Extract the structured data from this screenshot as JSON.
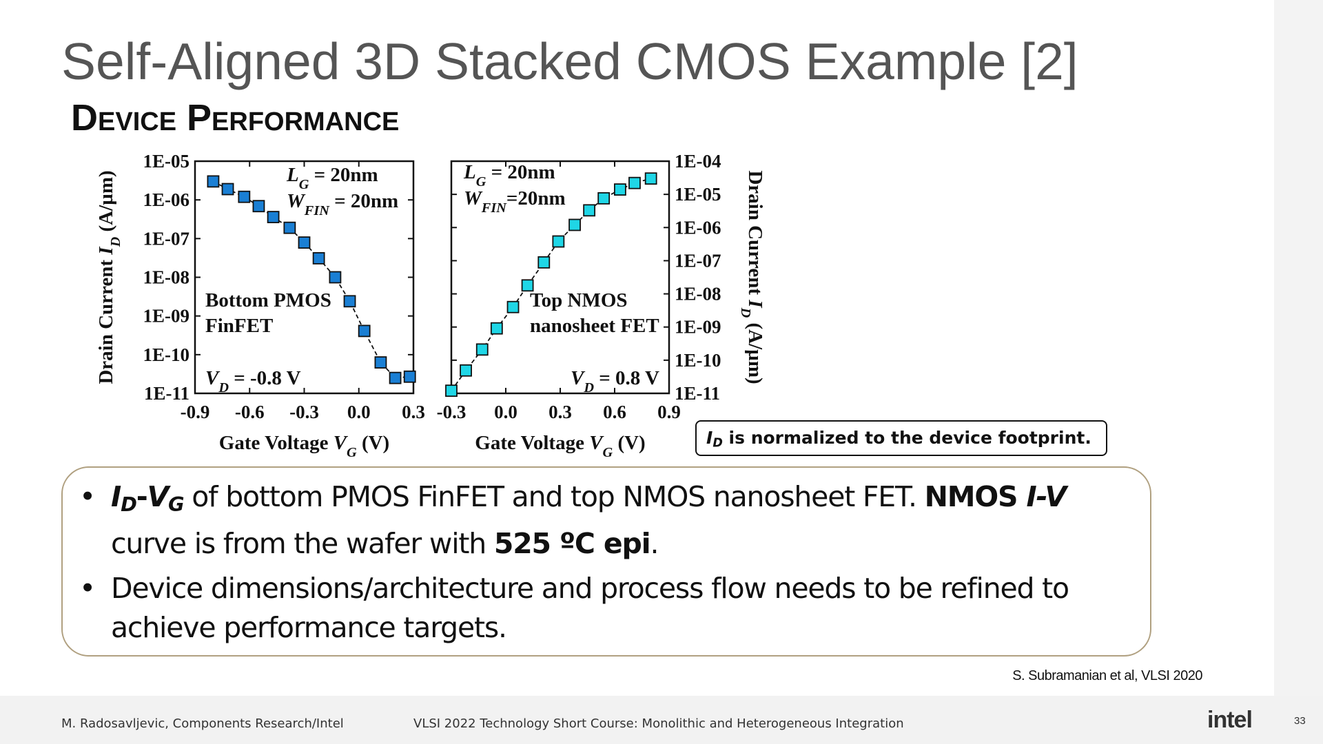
{
  "title": "Self-Aligned 3D Stacked CMOS Example [2]",
  "subtitle": "Device Performance",
  "chart_data": [
    {
      "type": "line",
      "yscale": "log",
      "color": "#1a7fd4",
      "x": [
        -0.8,
        -0.72,
        -0.63,
        -0.55,
        -0.47,
        -0.38,
        -0.3,
        -0.22,
        -0.13,
        -0.05,
        0.03,
        0.12,
        0.2,
        0.28
      ],
      "values": [
        3e-06,
        1.9e-06,
        1.2e-06,
        6.9e-07,
        3.6e-07,
        1.9e-07,
        7.9e-08,
        3.1e-08,
        1e-08,
        2.4e-09,
        4.1e-10,
        6.3e-11,
        2.5e-11,
        2.7e-11
      ],
      "xlim": [
        -0.9,
        0.3
      ],
      "xticks": [
        -0.9,
        -0.6,
        -0.3,
        {
          "value": 0,
          "label": "0.0"
        },
        0.3
      ],
      "ylim": [
        1e-11,
        1e-05
      ],
      "yticks": [
        {
          "value": 1e-05,
          "label": "1E-05"
        },
        {
          "value": 1e-06,
          "label": "1E-06"
        },
        {
          "value": 1e-07,
          "label": "1E-07"
        },
        {
          "value": 1e-08,
          "label": "1E-08"
        },
        {
          "value": 1e-09,
          "label": "1E-09"
        },
        {
          "value": 1e-10,
          "label": "1E-10"
        },
        {
          "value": 1e-11,
          "label": "1E-11"
        }
      ],
      "y_axis_side": "left",
      "x_label": [
        {
          "text": "Gate Voltage "
        },
        {
          "text": "V",
          "style": "i"
        },
        {
          "text": "G",
          "style": "i sub"
        },
        {
          "text": " (V)"
        }
      ],
      "y_label": [
        {
          "text": "Drain Current "
        },
        {
          "text": "I",
          "style": "i"
        },
        {
          "text": "D",
          "style": "i sub"
        },
        {
          "text": " (A/µm)"
        }
      ],
      "annotations": [
        [
          {
            "text": "L",
            "style": "i"
          },
          {
            "text": "G",
            "style": "i sub"
          },
          {
            "text": " = 20nm"
          }
        ],
        [
          {
            "text": "W",
            "style": "i"
          },
          {
            "text": "FIN",
            "style": "i sub"
          },
          {
            "text": " = 20nm"
          }
        ],
        [
          {
            "text": "Bottom PMOS"
          }
        ],
        [
          {
            "text": "FinFET"
          }
        ],
        [
          {
            "text": "V",
            "style": "i"
          },
          {
            "text": "D",
            "style": "i sub"
          },
          {
            "text": " = -0.8 V"
          }
        ]
      ]
    },
    {
      "type": "line",
      "yscale": "log",
      "color": "#1fd6e6",
      "x": [
        -0.3,
        -0.22,
        -0.13,
        -0.05,
        0.04,
        0.12,
        0.21,
        0.29,
        0.38,
        0.46,
        0.54,
        0.63,
        0.71,
        0.8
      ],
      "values": [
        1.2e-11,
        4.9e-11,
        2.1e-10,
        9.1e-10,
        4e-09,
        1.8e-08,
        8.9e-08,
        3.8e-07,
        1.2e-06,
        3.3e-06,
        7.6e-06,
        1.4e-05,
        2.2e-05,
        3e-05
      ],
      "xlim": [
        -0.3,
        0.9
      ],
      "xticks": [
        -0.3,
        {
          "value": 0,
          "label": "0.0"
        },
        0.3,
        0.6,
        0.9
      ],
      "ylim": [
        1e-11,
        0.0001
      ],
      "yticks": [
        {
          "value": 0.0001,
          "label": "1E-04"
        },
        {
          "value": 1e-05,
          "label": "1E-05"
        },
        {
          "value": 1e-06,
          "label": "1E-06"
        },
        {
          "value": 1e-07,
          "label": "1E-07"
        },
        {
          "value": 1e-08,
          "label": "1E-08"
        },
        {
          "value": 1e-09,
          "label": "1E-09"
        },
        {
          "value": 1e-10,
          "label": "1E-10"
        },
        {
          "value": 1e-11,
          "label": "1E-11"
        }
      ],
      "y_axis_side": "right",
      "x_label": [
        {
          "text": "Gate Voltage "
        },
        {
          "text": "V",
          "style": "i"
        },
        {
          "text": "G",
          "style": "i sub"
        },
        {
          "text": " (V)"
        }
      ],
      "y_label": [
        {
          "text": "Drain Current "
        },
        {
          "text": "I",
          "style": "i"
        },
        {
          "text": "D",
          "style": "i sub"
        },
        {
          "text": " (A/µm)"
        }
      ],
      "annotations": [
        [
          {
            "text": "L",
            "style": "i"
          },
          {
            "text": "G",
            "style": "i sub"
          },
          {
            "text": " = 20nm"
          }
        ],
        [
          {
            "text": "W",
            "style": "i"
          },
          {
            "text": "FIN",
            "style": "i sub"
          },
          {
            "text": "=20nm"
          }
        ],
        [
          {
            "text": "Top NMOS"
          }
        ],
        [
          {
            "text": "nanosheet FET"
          }
        ],
        [
          {
            "text": "V",
            "style": "i"
          },
          {
            "text": "D",
            "style": "i sub"
          },
          {
            "text": " = 0.8 V"
          }
        ]
      ]
    }
  ],
  "note": [
    {
      "text": "I",
      "style": "i"
    },
    {
      "text": "D",
      "style": "i sub"
    },
    {
      "text": " is normalized to the device footprint."
    }
  ],
  "bullets": [
    [
      {
        "text": "I",
        "style": "bi"
      },
      {
        "text": "D",
        "style": "bi sub"
      },
      {
        "text": "-",
        "style": "b"
      },
      {
        "text": "V",
        "style": "bi"
      },
      {
        "text": "G",
        "style": "bi sub"
      },
      {
        "text": " of bottom PMOS FinFET and top NMOS nanosheet FET. "
      },
      {
        "text": "NMOS ",
        "style": "b"
      },
      {
        "text": "I-V",
        "style": "bi"
      },
      {
        "text": " curve is from the wafer with "
      },
      {
        "text": "525 ºC epi",
        "style": "b"
      },
      {
        "text": "."
      }
    ],
    [
      {
        "text": "Device dimensions/architecture and process flow needs to be refined to achieve performance targets."
      }
    ]
  ],
  "citation": "S. Subramanian et al, VLSI 2020",
  "footer": {
    "left": "M. Radosavljevic, Components Research/Intel",
    "center": "VLSI 2022 Technology Short Course: Monolithic and Heterogeneous Integration",
    "logo": "intel",
    "page": "33"
  }
}
